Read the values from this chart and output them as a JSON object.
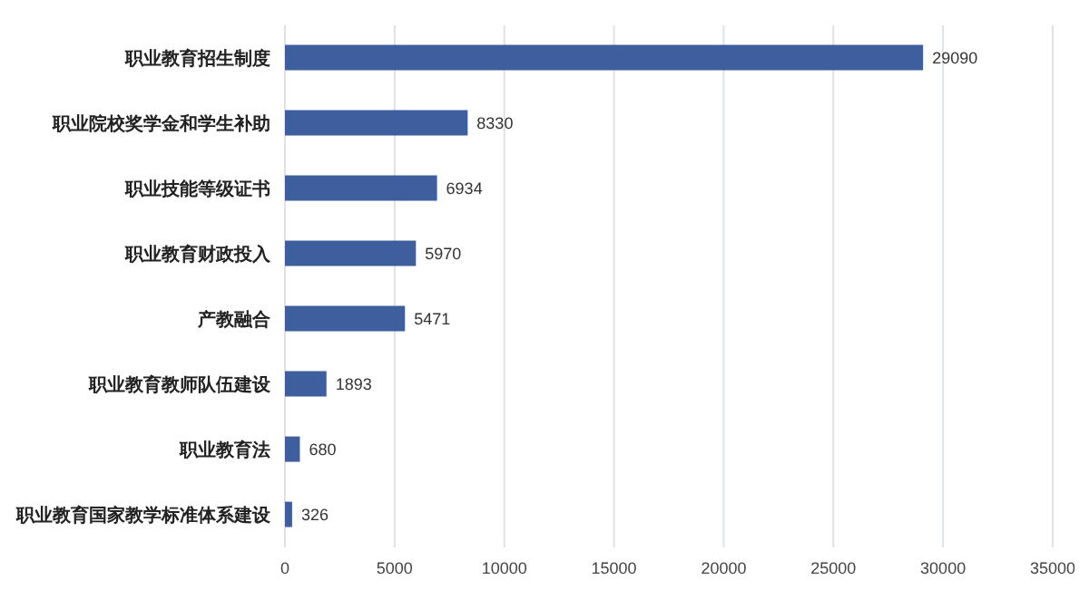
{
  "chart_data": {
    "type": "bar",
    "orientation": "horizontal",
    "categories": [
      "职业教育招生制度",
      "职业院校奖学金和学生补助",
      "职业技能等级证书",
      "职业教育财政投入",
      "产教融合",
      "职业教育教师队伍建设",
      "职业教育法",
      "职业教育国家教学标准体系建设"
    ],
    "values": [
      29090,
      8330,
      6934,
      5970,
      5471,
      1893,
      680,
      326
    ],
    "color": "#3f5e9e",
    "data_labels": true,
    "grid": "x",
    "xlim": [
      0,
      35000
    ],
    "xticks": [
      0,
      5000,
      10000,
      15000,
      20000,
      25000,
      30000,
      35000
    ]
  }
}
